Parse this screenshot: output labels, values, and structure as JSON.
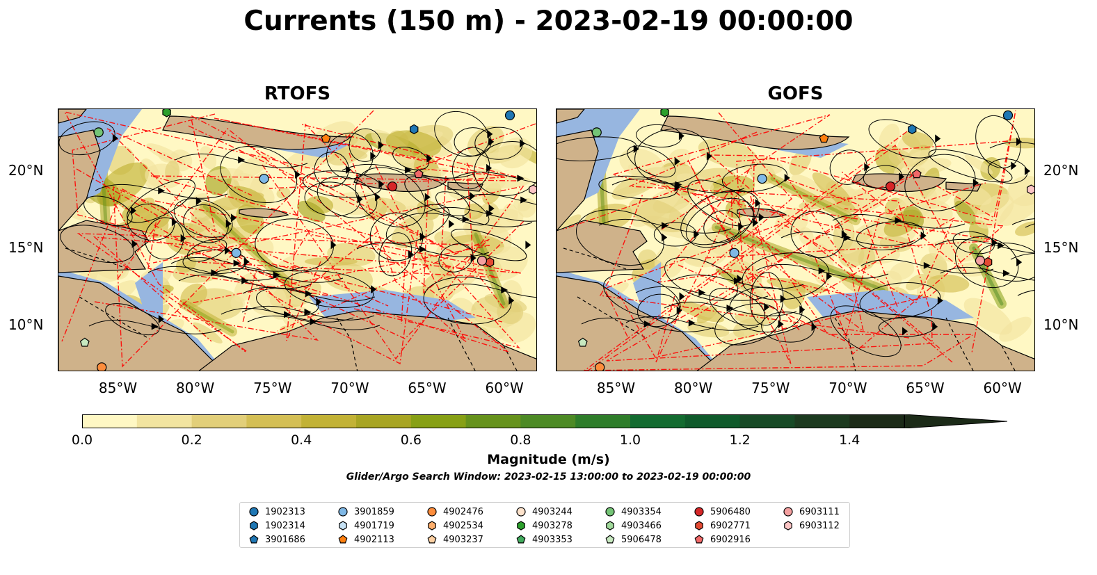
{
  "title": "Currents (150 m) - 2023-02-19 00:00:00",
  "panels": [
    {
      "title": "RTOFS"
    },
    {
      "title": "GOFS"
    }
  ],
  "axes": {
    "lon_ticks": [
      "85°W",
      "80°W",
      "75°W",
      "70°W",
      "65°W",
      "60°W"
    ],
    "lat_ticks": [
      "20°N",
      "15°N",
      "10°N"
    ],
    "lon_range": [
      -89,
      -58
    ],
    "lat_range": [
      7,
      24
    ]
  },
  "colorbar": {
    "label": "Magnitude (m/s)",
    "ticks": [
      "0.0",
      "0.2",
      "0.4",
      "0.6",
      "0.8",
      "1.0",
      "1.2",
      "1.4"
    ],
    "range": [
      0,
      1.5
    ],
    "extend": "max",
    "colors": [
      "#fff8c4",
      "#f2e4a0",
      "#e2cf7a",
      "#d4bf55",
      "#c2b236",
      "#a8a523",
      "#87a015",
      "#66921c",
      "#4d8a25",
      "#2e7d2a",
      "#136b30",
      "#0f5a2b",
      "#174a26",
      "#1c3a1f",
      "#1c2b18"
    ]
  },
  "search_window": "Glider/Argo Search Window: 2023-02-15 13:00:00 to 2023-02-19 00:00:00",
  "colors": {
    "land": "#cfb28a",
    "shallow_water": "#97b6e0",
    "eez_lines": "#ff0000",
    "streamlines": "#000000"
  },
  "legend": [
    {
      "id": "1902313",
      "marker": "circle",
      "color": "#1f77b4"
    },
    {
      "id": "1902314",
      "marker": "hexagon",
      "color": "#1f77b4"
    },
    {
      "id": "3901686",
      "marker": "pentagon",
      "color": "#1f77b4"
    },
    {
      "id": "3901859",
      "marker": "circle",
      "color": "#7fb8e6"
    },
    {
      "id": "4901719",
      "marker": "hexagon",
      "color": "#c6e2f5"
    },
    {
      "id": "4902113",
      "marker": "pentagon",
      "color": "#ff7f0e"
    },
    {
      "id": "4902476",
      "marker": "circle",
      "color": "#fd8d3c"
    },
    {
      "id": "4902534",
      "marker": "hexagon",
      "color": "#fdae6b"
    },
    {
      "id": "4903237",
      "marker": "pentagon",
      "color": "#fdd0a2"
    },
    {
      "id": "4903244",
      "marker": "circle",
      "color": "#fde3cc"
    },
    {
      "id": "4903278",
      "marker": "hexagon",
      "color": "#2ca02c"
    },
    {
      "id": "4903353",
      "marker": "pentagon",
      "color": "#41ab5d"
    },
    {
      "id": "4903354",
      "marker": "circle",
      "color": "#74c476"
    },
    {
      "id": "4903466",
      "marker": "hexagon",
      "color": "#a1d99b"
    },
    {
      "id": "5906478",
      "marker": "pentagon",
      "color": "#c7e9c0"
    },
    {
      "id": "5906480",
      "marker": "circle",
      "color": "#d62728"
    },
    {
      "id": "6902771",
      "marker": "hexagon",
      "color": "#e34a33"
    },
    {
      "id": "6902916",
      "marker": "pentagon",
      "color": "#f16868"
    },
    {
      "id": "6903111",
      "marker": "circle",
      "color": "#f4a0a0"
    },
    {
      "id": "6903112",
      "marker": "hexagon",
      "color": "#fcc5c5"
    }
  ],
  "floats": [
    {
      "id": "1902313",
      "lon": -59.8,
      "lat": 23.6
    },
    {
      "id": "1902314",
      "lon": -66.0,
      "lat": 22.7
    },
    {
      "id": "3901859",
      "lon": -75.7,
      "lat": 19.5
    },
    {
      "id": "3901859",
      "lon": -77.5,
      "lat": 14.7
    },
    {
      "id": "4902113",
      "lon": -71.7,
      "lat": 22.1
    },
    {
      "id": "4902476",
      "lon": -86.2,
      "lat": 7.3
    },
    {
      "id": "4903354",
      "lon": -86.4,
      "lat": 22.5
    },
    {
      "id": "4903278",
      "lon": -82.0,
      "lat": 23.8
    },
    {
      "id": "5906478",
      "lon": -87.3,
      "lat": 8.9
    },
    {
      "id": "5906480",
      "lon": -67.4,
      "lat": 19.0
    },
    {
      "id": "6902771",
      "lon": -61.1,
      "lat": 14.1
    },
    {
      "id": "6902916",
      "lon": -65.7,
      "lat": 19.8
    },
    {
      "id": "6903111",
      "lon": -61.6,
      "lat": 14.2
    },
    {
      "id": "6903112",
      "lon": -58.3,
      "lat": 18.8
    }
  ]
}
